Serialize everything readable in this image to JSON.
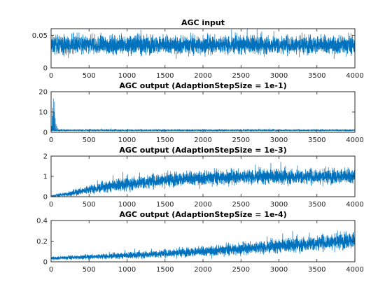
{
  "figure": {
    "background": "#ffffff",
    "series_color": "#0072bd"
  },
  "chart_data": [
    {
      "type": "line",
      "title": "AGC input",
      "xlabel": "",
      "ylabel": "",
      "xlim": [
        0,
        4000
      ],
      "ylim": [
        0,
        0.06
      ],
      "xticks": [
        0,
        500,
        1000,
        1500,
        2000,
        2500,
        3000,
        3500,
        4000
      ],
      "xtick_labels": [
        "0",
        "500",
        "1000",
        "1500",
        "2000",
        "2500",
        "3000",
        "3500",
        "4000"
      ],
      "yticks": [
        0,
        0.05
      ],
      "ytick_labels": [
        "0",
        "0.05"
      ],
      "grid": false,
      "series": [
        {
          "description": "noisy signal fluctuating around 0.035, between about 0.005 and 0.06",
          "x_range": [
            0,
            4000
          ],
          "samples": 4000,
          "profile": [
            [
              0,
              0.035
            ],
            [
              4000,
              0.035
            ]
          ],
          "spread": [
            [
              0,
              0.012
            ],
            [
              4000,
              0.012
            ]
          ],
          "min": 0.002,
          "max": 0.06,
          "spikes": []
        }
      ]
    },
    {
      "type": "line",
      "title": "AGC output (AdaptionStepSize = 1e-1)",
      "xlabel": "",
      "ylabel": "",
      "xlim": [
        0,
        4000
      ],
      "ylim": [
        0,
        20
      ],
      "xticks": [
        0,
        500,
        1000,
        1500,
        2000,
        2500,
        3000,
        3500,
        4000
      ],
      "xtick_labels": [
        "0",
        "500",
        "1000",
        "1500",
        "2000",
        "2500",
        "3000",
        "3500",
        "4000"
      ],
      "yticks": [
        0,
        10,
        20
      ],
      "ytick_labels": [
        "0",
        "10",
        "20"
      ],
      "grid": false,
      "series": [
        {
          "description": "initial spike to about 16 near x=30, settles to about 1 by x=100",
          "x_range": [
            0,
            4000
          ],
          "samples": 4000,
          "profile": [
            [
              0,
              1.0
            ],
            [
              4000,
              1.0
            ]
          ],
          "spread": [
            [
              0,
              0.35
            ],
            [
              4000,
              0.35
            ]
          ],
          "min": 0,
          "max": 20,
          "spikes": [
            [
              8,
              3
            ],
            [
              15,
              8
            ],
            [
              22,
              12
            ],
            [
              30,
              16.5
            ],
            [
              38,
              10
            ],
            [
              45,
              15
            ],
            [
              55,
              7
            ],
            [
              65,
              4
            ],
            [
              75,
              3
            ],
            [
              90,
              2
            ]
          ]
        }
      ]
    },
    {
      "type": "line",
      "title": "AGC output (AdaptionStepSize = 1e-3)",
      "xlabel": "",
      "ylabel": "",
      "xlim": [
        0,
        4000
      ],
      "ylim": [
        0,
        2
      ],
      "xticks": [
        0,
        500,
        1000,
        1500,
        2000,
        2500,
        3000,
        3500,
        4000
      ],
      "xtick_labels": [
        "0",
        "500",
        "1000",
        "1500",
        "2000",
        "2500",
        "3000",
        "3500",
        "4000"
      ],
      "yticks": [
        0,
        1,
        2
      ],
      "ytick_labels": [
        "0",
        "1",
        "2"
      ],
      "grid": false,
      "series": [
        {
          "description": "gain ramps from near 0 to about 1 by x=2000, then noisy around 1",
          "x_range": [
            0,
            4000
          ],
          "samples": 4000,
          "profile": [
            [
              0,
              0.03
            ],
            [
              250,
              0.15
            ],
            [
              500,
              0.35
            ],
            [
              1000,
              0.62
            ],
            [
              1500,
              0.82
            ],
            [
              2000,
              0.92
            ],
            [
              2500,
              0.97
            ],
            [
              3000,
              0.98
            ],
            [
              4000,
              1.0
            ]
          ],
          "spread": [
            [
              0,
              0.03
            ],
            [
              500,
              0.18
            ],
            [
              1000,
              0.28
            ],
            [
              2000,
              0.3
            ],
            [
              4000,
              0.32
            ]
          ],
          "min": 0,
          "max": 1.75,
          "spikes": []
        }
      ]
    },
    {
      "type": "line",
      "title": "AGC output (AdaptionStepSize = 1e-4)",
      "xlabel": "",
      "ylabel": "",
      "xlim": [
        0,
        4000
      ],
      "ylim": [
        0,
        0.4
      ],
      "xticks": [
        0,
        500,
        1000,
        1500,
        2000,
        2500,
        3000,
        3500,
        4000
      ],
      "xtick_labels": [
        "0",
        "500",
        "1000",
        "1500",
        "2000",
        "2500",
        "3000",
        "3500",
        "4000"
      ],
      "yticks": [
        0,
        0.2,
        0.4
      ],
      "ytick_labels": [
        "0",
        "0.2",
        "0.4"
      ],
      "grid": false,
      "series": [
        {
          "description": "slow ramp from about 0.04 to about 0.22 across the full range, growing noise",
          "x_range": [
            0,
            4000
          ],
          "samples": 4000,
          "profile": [
            [
              0,
              0.035
            ],
            [
              1000,
              0.06
            ],
            [
              2000,
              0.1
            ],
            [
              3000,
              0.15
            ],
            [
              4000,
              0.21
            ]
          ],
          "spread": [
            [
              0,
              0.012
            ],
            [
              1000,
              0.025
            ],
            [
              2000,
              0.04
            ],
            [
              3000,
              0.055
            ],
            [
              4000,
              0.07
            ]
          ],
          "min": 0,
          "max": 0.38,
          "spikes": []
        }
      ]
    }
  ]
}
